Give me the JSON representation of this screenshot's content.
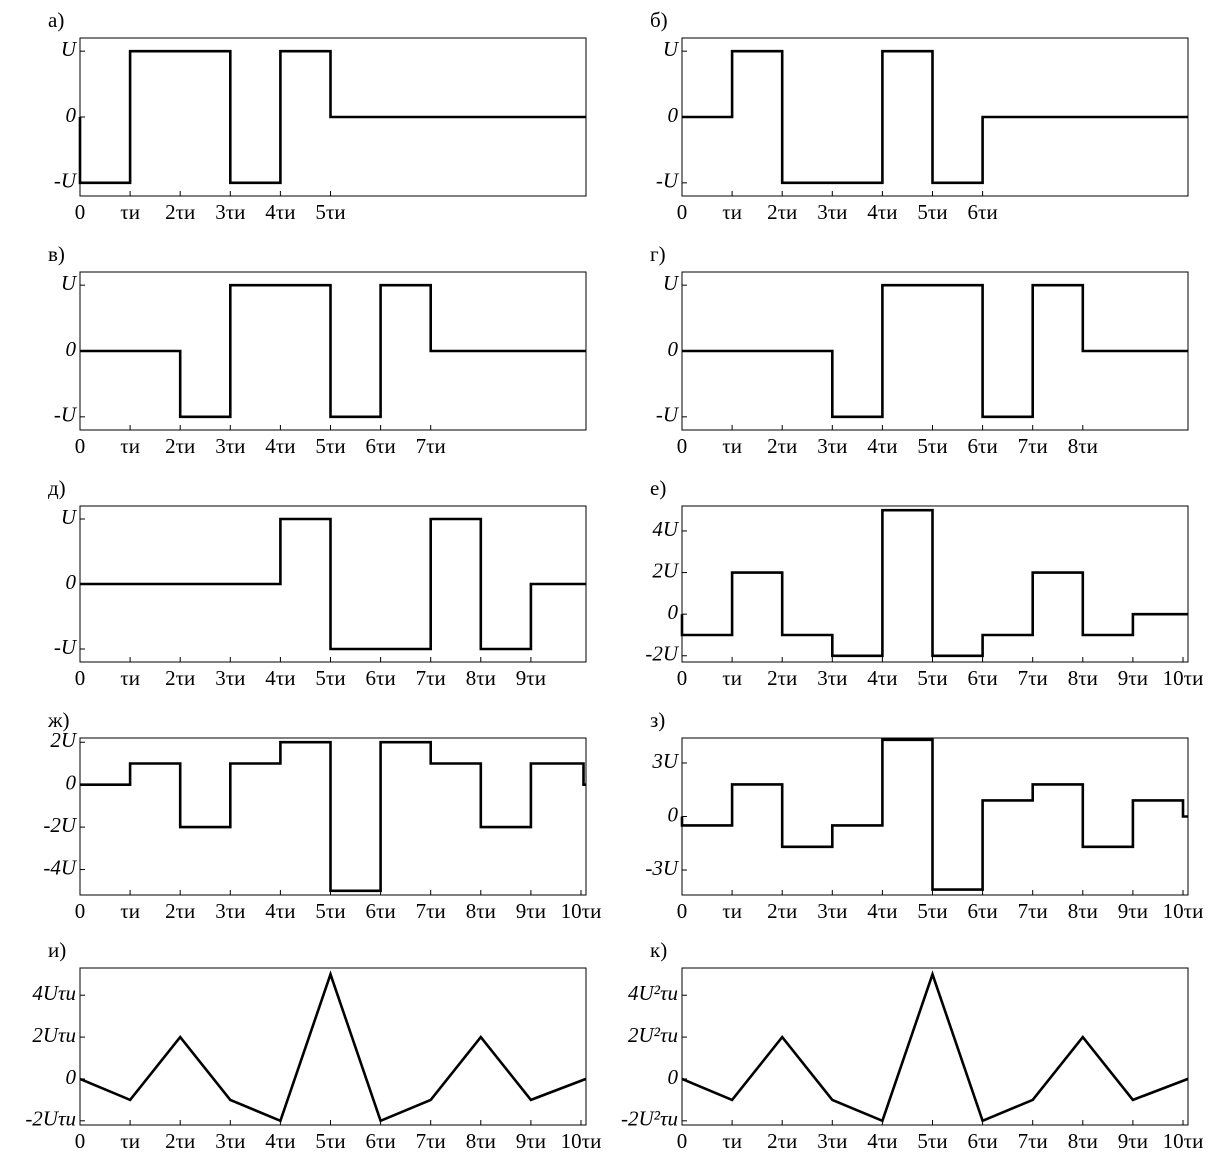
{
  "chart_data": [
    {
      "type": "line",
      "title": "а)",
      "color": "#000000",
      "x": [
        0,
        0,
        1,
        1,
        3,
        3,
        4,
        4,
        5,
        5,
        10.1
      ],
      "values": [
        0,
        -1,
        -1,
        1,
        1,
        -1,
        -1,
        1,
        1,
        0,
        0
      ],
      "xlim": [
        0,
        10.1
      ],
      "ylim": [
        -1.2,
        1.2
      ],
      "xticks": [
        0,
        {
          "value": 1,
          "label": "τи"
        },
        {
          "value": 2,
          "label": "2τи"
        },
        {
          "value": 3,
          "label": "3τи"
        },
        {
          "value": 4,
          "label": "4τи"
        },
        {
          "value": 5,
          "label": "5τи"
        }
      ],
      "yticks": [
        {
          "value": -1,
          "label": "-U"
        },
        0,
        {
          "value": 1,
          "label": "U"
        }
      ]
    },
    {
      "type": "line",
      "title": "б)",
      "color": "#000000",
      "x": [
        0,
        1,
        1,
        2,
        2,
        4,
        4,
        5,
        5,
        6,
        6,
        10.1
      ],
      "values": [
        0,
        0,
        1,
        1,
        -1,
        -1,
        1,
        1,
        -1,
        -1,
        0,
        0
      ],
      "xlim": [
        0,
        10.1
      ],
      "ylim": [
        -1.2,
        1.2
      ],
      "xticks": [
        0,
        {
          "value": 1,
          "label": "τи"
        },
        {
          "value": 2,
          "label": "2τи"
        },
        {
          "value": 3,
          "label": "3τи"
        },
        {
          "value": 4,
          "label": "4τи"
        },
        {
          "value": 5,
          "label": "5τи"
        },
        {
          "value": 6,
          "label": "6τи"
        }
      ],
      "yticks": [
        {
          "value": -1,
          "label": "-U"
        },
        0,
        {
          "value": 1,
          "label": "U"
        }
      ]
    },
    {
      "type": "line",
      "title": "в)",
      "color": "#000000",
      "x": [
        0,
        2,
        2,
        3,
        3,
        5,
        5,
        6,
        6,
        7,
        7,
        10.1
      ],
      "values": [
        0,
        0,
        -1,
        -1,
        1,
        1,
        -1,
        -1,
        1,
        1,
        0,
        0
      ],
      "xlim": [
        0,
        10.1
      ],
      "ylim": [
        -1.2,
        1.2
      ],
      "xticks": [
        0,
        {
          "value": 1,
          "label": "τи"
        },
        {
          "value": 2,
          "label": "2τи"
        },
        {
          "value": 3,
          "label": "3τи"
        },
        {
          "value": 4,
          "label": "4τи"
        },
        {
          "value": 5,
          "label": "5τи"
        },
        {
          "value": 6,
          "label": "6τи"
        },
        {
          "value": 7,
          "label": "7τи"
        }
      ],
      "yticks": [
        {
          "value": -1,
          "label": "-U"
        },
        0,
        {
          "value": 1,
          "label": "U"
        }
      ]
    },
    {
      "type": "line",
      "title": "г)",
      "color": "#000000",
      "x": [
        0,
        3,
        3,
        4,
        4,
        6,
        6,
        7,
        7,
        8,
        8,
        10.1
      ],
      "values": [
        0,
        0,
        -1,
        -1,
        1,
        1,
        -1,
        -1,
        1,
        1,
        0,
        0
      ],
      "xlim": [
        0,
        10.1
      ],
      "ylim": [
        -1.2,
        1.2
      ],
      "xticks": [
        0,
        {
          "value": 1,
          "label": "τи"
        },
        {
          "value": 2,
          "label": "2τи"
        },
        {
          "value": 3,
          "label": "3τи"
        },
        {
          "value": 4,
          "label": "4τи"
        },
        {
          "value": 5,
          "label": "5τи"
        },
        {
          "value": 6,
          "label": "6τи"
        },
        {
          "value": 7,
          "label": "7τи"
        },
        {
          "value": 8,
          "label": "8τи"
        }
      ],
      "yticks": [
        {
          "value": -1,
          "label": "-U"
        },
        0,
        {
          "value": 1,
          "label": "U"
        }
      ]
    },
    {
      "type": "line",
      "title": "д)",
      "color": "#000000",
      "x": [
        0,
        4,
        4,
        5,
        5,
        7,
        7,
        8,
        8,
        9,
        9,
        10.1
      ],
      "values": [
        0,
        0,
        1,
        1,
        -1,
        -1,
        1,
        1,
        -1,
        -1,
        0,
        0
      ],
      "xlim": [
        0,
        10.1
      ],
      "ylim": [
        -1.2,
        1.2
      ],
      "xticks": [
        0,
        {
          "value": 1,
          "label": "τи"
        },
        {
          "value": 2,
          "label": "2τи"
        },
        {
          "value": 3,
          "label": "3τи"
        },
        {
          "value": 4,
          "label": "4τи"
        },
        {
          "value": 5,
          "label": "5τи"
        },
        {
          "value": 6,
          "label": "6τи"
        },
        {
          "value": 7,
          "label": "7τи"
        },
        {
          "value": 8,
          "label": "8τи"
        },
        {
          "value": 9,
          "label": "9τи"
        }
      ],
      "yticks": [
        {
          "value": -1,
          "label": "-U"
        },
        0,
        {
          "value": 1,
          "label": "U"
        }
      ]
    },
    {
      "type": "line",
      "title": "е)",
      "color": "#000000",
      "x": [
        0,
        0,
        1,
        1,
        2,
        2,
        3,
        3,
        4,
        4,
        5,
        5,
        6,
        6,
        7,
        7,
        8,
        8,
        9,
        9,
        10.1
      ],
      "values": [
        0,
        -1,
        -1,
        2,
        2,
        -1,
        -1,
        -2,
        -2,
        5,
        5,
        -2,
        -2,
        -1,
        -1,
        2,
        2,
        -1,
        -1,
        0,
        0
      ],
      "xlim": [
        0,
        10.1
      ],
      "ylim": [
        -2.3,
        5.2
      ],
      "xticks": [
        0,
        {
          "value": 1,
          "label": "τи"
        },
        {
          "value": 2,
          "label": "2τи"
        },
        {
          "value": 3,
          "label": "3τи"
        },
        {
          "value": 4,
          "label": "4τи"
        },
        {
          "value": 5,
          "label": "5τи"
        },
        {
          "value": 6,
          "label": "6τи"
        },
        {
          "value": 7,
          "label": "7τи"
        },
        {
          "value": 8,
          "label": "8τи"
        },
        {
          "value": 9,
          "label": "9τи"
        },
        {
          "value": 10,
          "label": "10τи"
        }
      ],
      "yticks": [
        {
          "value": -2,
          "label": "-2U"
        },
        0,
        {
          "value": 2,
          "label": "2U"
        },
        {
          "value": 4,
          "label": "4U"
        }
      ]
    },
    {
      "type": "line",
      "title": "ж)",
      "color": "#000000",
      "x": [
        0,
        1,
        1,
        2,
        2,
        3,
        3,
        4,
        4,
        5,
        5,
        6,
        6,
        7,
        7,
        8,
        8,
        9,
        9,
        10.05,
        10.05,
        10.1
      ],
      "values": [
        0,
        0,
        1,
        1,
        -2,
        -2,
        1,
        1,
        2,
        2,
        -5,
        -5,
        2,
        2,
        1,
        1,
        -2,
        -2,
        1,
        1,
        0,
        0
      ],
      "xlim": [
        0,
        10.1
      ],
      "ylim": [
        -5.2,
        2.2
      ],
      "xticks": [
        0,
        {
          "value": 1,
          "label": "τи"
        },
        {
          "value": 2,
          "label": "2τи"
        },
        {
          "value": 3,
          "label": "3τи"
        },
        {
          "value": 4,
          "label": "4τи"
        },
        {
          "value": 5,
          "label": "5τи"
        },
        {
          "value": 6,
          "label": "6τи"
        },
        {
          "value": 7,
          "label": "7τи"
        },
        {
          "value": 8,
          "label": "8τи"
        },
        {
          "value": 9,
          "label": "9τи"
        },
        {
          "value": 10,
          "label": "10τи"
        }
      ],
      "yticks": [
        {
          "value": -4,
          "label": "-4U"
        },
        {
          "value": -2,
          "label": "-2U"
        },
        0,
        {
          "value": 2,
          "label": "2U"
        }
      ]
    },
    {
      "type": "line",
      "title": "з)",
      "color": "#000000",
      "x": [
        0,
        0,
        1,
        1,
        2,
        2,
        3,
        3,
        4,
        4,
        5,
        5,
        6,
        6,
        7,
        7,
        8,
        8,
        9,
        9,
        10,
        10,
        10.1
      ],
      "values": [
        0,
        -0.5,
        -0.5,
        1.8,
        1.8,
        -1.7,
        -1.7,
        -0.5,
        -0.5,
        4.3,
        4.3,
        -4.1,
        -4.1,
        0.9,
        0.9,
        1.8,
        1.8,
        -1.7,
        -1.7,
        0.9,
        0.9,
        0,
        0
      ],
      "xlim": [
        0,
        10.1
      ],
      "ylim": [
        -4.4,
        4.4
      ],
      "xticks": [
        0,
        {
          "value": 1,
          "label": "τи"
        },
        {
          "value": 2,
          "label": "2τи"
        },
        {
          "value": 3,
          "label": "3τи"
        },
        {
          "value": 4,
          "label": "4τи"
        },
        {
          "value": 5,
          "label": "5τи"
        },
        {
          "value": 6,
          "label": "6τи"
        },
        {
          "value": 7,
          "label": "7τи"
        },
        {
          "value": 8,
          "label": "8τи"
        },
        {
          "value": 9,
          "label": "9τи"
        },
        {
          "value": 10,
          "label": "10τи"
        }
      ],
      "yticks": [
        {
          "value": -3,
          "label": "-3U"
        },
        0,
        {
          "value": 3,
          "label": "3U"
        }
      ]
    },
    {
      "type": "line",
      "title": "и)",
      "color": "#000000",
      "x": [
        0,
        1,
        2,
        3,
        4,
        5,
        6,
        7,
        8,
        9,
        10.1
      ],
      "values": [
        0,
        -1,
        2,
        -1,
        -2,
        5,
        -2,
        -1,
        2,
        -1,
        0
      ],
      "xlim": [
        0,
        10.1
      ],
      "ylim": [
        -2.2,
        5.3
      ],
      "xticks": [
        0,
        {
          "value": 1,
          "label": "τи"
        },
        {
          "value": 2,
          "label": "2τи"
        },
        {
          "value": 3,
          "label": "3τи"
        },
        {
          "value": 4,
          "label": "4τи"
        },
        {
          "value": 5,
          "label": "5τи"
        },
        {
          "value": 6,
          "label": "6τи"
        },
        {
          "value": 7,
          "label": "7τи"
        },
        {
          "value": 8,
          "label": "8τи"
        },
        {
          "value": 9,
          "label": "9τи"
        },
        {
          "value": 10,
          "label": "10τи"
        }
      ],
      "yticks": [
        {
          "value": -2,
          "label": "-2Uτи"
        },
        0,
        {
          "value": 2,
          "label": "2Uτи"
        },
        {
          "value": 4,
          "label": "4Uτи"
        }
      ]
    },
    {
      "type": "line",
      "title": "к)",
      "color": "#000000",
      "x": [
        0,
        1,
        2,
        3,
        4,
        5,
        6,
        7,
        8,
        9,
        10.1
      ],
      "values": [
        0,
        -1,
        2,
        -1,
        -2,
        5,
        -2,
        -1,
        2,
        -1,
        0
      ],
      "xlim": [
        0,
        10.1
      ],
      "ylim": [
        -2.2,
        5.3
      ],
      "xticks": [
        0,
        {
          "value": 1,
          "label": "τи"
        },
        {
          "value": 2,
          "label": "2τи"
        },
        {
          "value": 3,
          "label": "3τи"
        },
        {
          "value": 4,
          "label": "4τи"
        },
        {
          "value": 5,
          "label": "5τи"
        },
        {
          "value": 6,
          "label": "6τи"
        },
        {
          "value": 7,
          "label": "7τи"
        },
        {
          "value": 8,
          "label": "8τи"
        },
        {
          "value": 9,
          "label": "9τи"
        },
        {
          "value": 10,
          "label": "10τи"
        }
      ],
      "yticks": [
        {
          "value": -2,
          "label": "-2U²τи"
        },
        0,
        {
          "value": 2,
          "label": "2U²τи"
        },
        {
          "value": 4,
          "label": "4U²τи"
        }
      ]
    }
  ]
}
